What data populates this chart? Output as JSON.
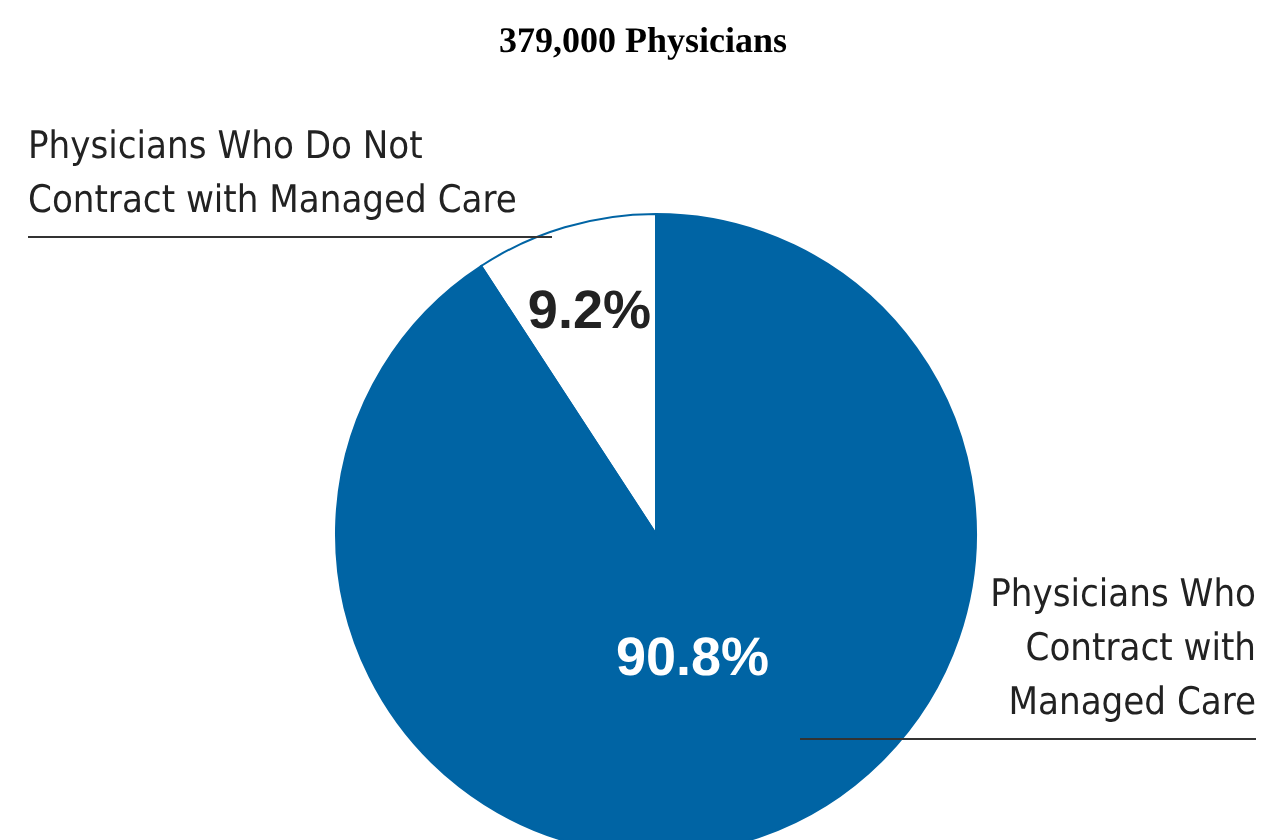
{
  "chart_data": {
    "type": "pie",
    "title": "379,000 Physicians",
    "categories": [
      "Physicians Who Do Not Contract with Managed Care",
      "Physicians Who Contract with Managed Care"
    ],
    "values": [
      9.2,
      90.8
    ],
    "colors": [
      "#ffffff",
      "#0064a4"
    ],
    "value_labels": [
      "9.2%",
      "90.8%"
    ]
  }
}
